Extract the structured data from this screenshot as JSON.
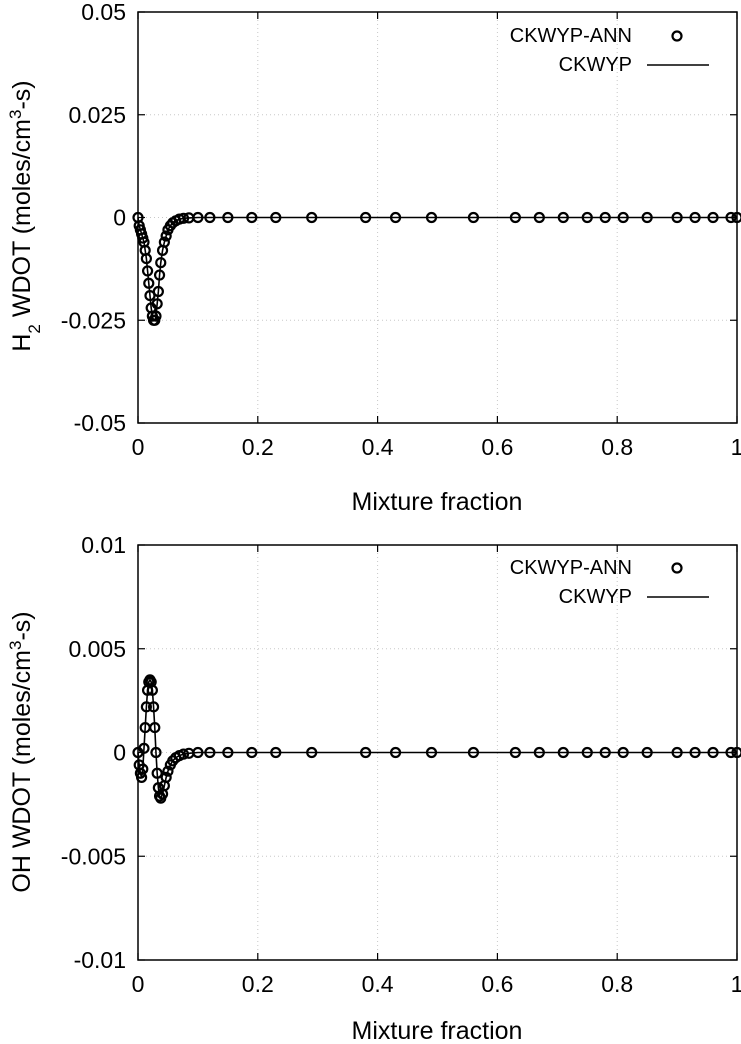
{
  "chart_data": [
    {
      "type": "line",
      "title": "",
      "xlabel": "Mixture fraction",
      "ylabel_main": "H",
      "ylabel_sub": "2",
      "ylabel_rest": " WDOT (moles/cm",
      "ylabel_sup": "3",
      "ylabel_end": "-s)",
      "xlim": [
        0,
        1
      ],
      "ylim": [
        -0.05,
        0.05
      ],
      "xticks": [
        0,
        0.2,
        0.4,
        0.6,
        0.8,
        1
      ],
      "xtick_labels": [
        "0",
        "0.2",
        "0.4",
        "0.6",
        "0.8",
        "1"
      ],
      "yticks": [
        0.05,
        0.025,
        0,
        -0.025,
        -0.05
      ],
      "ytick_labels": [
        "0.05",
        "0.025",
        "0",
        "-0.025",
        "-0.05"
      ],
      "grid": true,
      "legend_position": "top-right",
      "series": [
        {
          "name": "CKWYP-ANN",
          "style": "markers",
          "x": [
            0,
            0.002,
            0.004,
            0.006,
            0.008,
            0.01,
            0.012,
            0.014,
            0.016,
            0.018,
            0.02,
            0.022,
            0.024,
            0.026,
            0.028,
            0.03,
            0.032,
            0.034,
            0.036,
            0.038,
            0.041,
            0.044,
            0.047,
            0.05,
            0.054,
            0.058,
            0.063,
            0.069,
            0.076,
            0.085,
            0.1,
            0.12,
            0.15,
            0.19,
            0.23,
            0.29,
            0.38,
            0.43,
            0.49,
            0.56,
            0.63,
            0.67,
            0.71,
            0.75,
            0.78,
            0.81,
            0.85,
            0.9,
            0.93,
            0.96,
            0.99,
            1.0
          ],
          "y": [
            0,
            -0.002,
            -0.003,
            -0.004,
            -0.005,
            -0.006,
            -0.008,
            -0.01,
            -0.013,
            -0.016,
            -0.019,
            -0.022,
            -0.024,
            -0.025,
            -0.025,
            -0.024,
            -0.021,
            -0.018,
            -0.014,
            -0.011,
            -0.008,
            -0.006,
            -0.0045,
            -0.003,
            -0.002,
            -0.0013,
            -0.0008,
            -0.0004,
            -0.0002,
            -0.0001,
            0,
            0,
            0,
            0,
            0,
            0,
            0,
            0,
            0,
            0,
            0,
            0,
            0,
            0,
            0,
            0,
            0,
            0,
            0,
            0,
            0,
            0
          ]
        },
        {
          "name": "CKWYP",
          "style": "line",
          "x": [
            0,
            0.002,
            0.004,
            0.006,
            0.008,
            0.01,
            0.012,
            0.014,
            0.016,
            0.018,
            0.02,
            0.022,
            0.024,
            0.026,
            0.028,
            0.03,
            0.032,
            0.034,
            0.036,
            0.038,
            0.041,
            0.044,
            0.047,
            0.05,
            0.054,
            0.058,
            0.063,
            0.069,
            0.076,
            0.085,
            0.1,
            0.2,
            0.4,
            0.6,
            0.8,
            1.0
          ],
          "y": [
            0,
            -0.002,
            -0.003,
            -0.004,
            -0.005,
            -0.006,
            -0.008,
            -0.01,
            -0.013,
            -0.016,
            -0.019,
            -0.022,
            -0.024,
            -0.025,
            -0.025,
            -0.024,
            -0.021,
            -0.018,
            -0.014,
            -0.011,
            -0.008,
            -0.006,
            -0.0045,
            -0.003,
            -0.002,
            -0.0013,
            -0.0008,
            -0.0004,
            -0.0002,
            -0.0001,
            0,
            0,
            0,
            0,
            0,
            0
          ]
        }
      ]
    },
    {
      "type": "line",
      "title": "",
      "xlabel": "Mixture fraction",
      "ylabel_main": "OH WDOT (moles/cm",
      "ylabel_sup": "3",
      "ylabel_end": "-s)",
      "xlim": [
        0,
        1
      ],
      "ylim": [
        -0.01,
        0.01
      ],
      "xticks": [
        0,
        0.2,
        0.4,
        0.6,
        0.8,
        1
      ],
      "xtick_labels": [
        "0",
        "0.2",
        "0.4",
        "0.6",
        "0.8",
        "1"
      ],
      "yticks": [
        0.01,
        0.005,
        0,
        -0.005,
        -0.01
      ],
      "ytick_labels": [
        "0.01",
        "0.005",
        "0",
        "-0.005",
        "-0.01"
      ],
      "grid": true,
      "legend_position": "top-right",
      "series": [
        {
          "name": "CKWYP-ANN",
          "style": "markers",
          "x": [
            0,
            0.002,
            0.004,
            0.006,
            0.008,
            0.01,
            0.012,
            0.014,
            0.016,
            0.018,
            0.02,
            0.022,
            0.024,
            0.026,
            0.028,
            0.03,
            0.032,
            0.034,
            0.036,
            0.038,
            0.041,
            0.044,
            0.047,
            0.05,
            0.054,
            0.058,
            0.063,
            0.069,
            0.076,
            0.085,
            0.1,
            0.12,
            0.15,
            0.19,
            0.23,
            0.29,
            0.38,
            0.43,
            0.49,
            0.56,
            0.63,
            0.67,
            0.71,
            0.75,
            0.78,
            0.81,
            0.85,
            0.9,
            0.93,
            0.96,
            0.99,
            1.0
          ],
          "y": [
            0,
            -0.0006,
            -0.001,
            -0.0012,
            -0.0008,
            0.0002,
            0.0012,
            0.0022,
            0.003,
            0.0034,
            0.0035,
            0.0034,
            0.003,
            0.0022,
            0.0012,
            0,
            -0.001,
            -0.0017,
            -0.0021,
            -0.0022,
            -0.002,
            -0.0016,
            -0.0012,
            -0.0009,
            -0.0006,
            -0.0004,
            -0.00025,
            -0.00015,
            -8e-05,
            -4e-05,
            0,
            0,
            0,
            0,
            0,
            0,
            0,
            0,
            0,
            0,
            0,
            0,
            0,
            0,
            0,
            0,
            0,
            0,
            0,
            0,
            0,
            0
          ]
        },
        {
          "name": "CKWYP",
          "style": "line",
          "x": [
            0,
            0.002,
            0.004,
            0.006,
            0.008,
            0.01,
            0.012,
            0.014,
            0.016,
            0.018,
            0.02,
            0.022,
            0.024,
            0.026,
            0.028,
            0.03,
            0.032,
            0.034,
            0.036,
            0.038,
            0.041,
            0.044,
            0.047,
            0.05,
            0.054,
            0.058,
            0.063,
            0.069,
            0.076,
            0.085,
            0.1,
            0.2,
            0.4,
            0.6,
            0.8,
            1.0
          ],
          "y": [
            0,
            -0.0006,
            -0.001,
            -0.0012,
            -0.0008,
            0.0002,
            0.0012,
            0.0022,
            0.003,
            0.0034,
            0.0035,
            0.0034,
            0.003,
            0.0022,
            0.0012,
            0,
            -0.001,
            -0.0017,
            -0.0021,
            -0.0022,
            -0.002,
            -0.0016,
            -0.0012,
            -0.0009,
            -0.0006,
            -0.0004,
            -0.00025,
            -0.00015,
            -8e-05,
            -4e-05,
            0,
            0,
            0,
            0,
            0,
            0
          ]
        }
      ]
    }
  ]
}
